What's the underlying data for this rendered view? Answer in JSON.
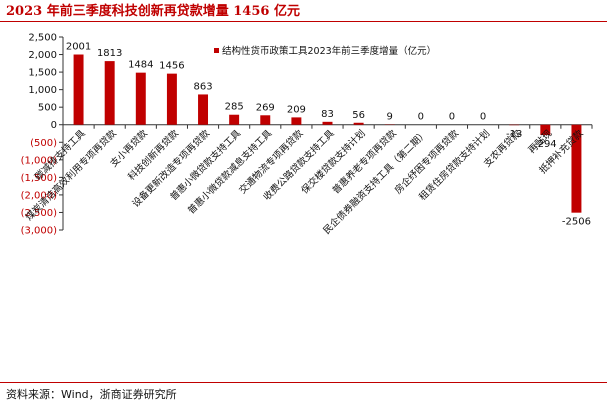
{
  "title": "2023 年前三季度科技创新再贷款增量 1456 亿元",
  "source": "资料来源：Wind，浙商证券研究所",
  "chart_data": {
    "type": "bar",
    "legend": "结构性货币政策工具2023年前三季度增量（亿元）",
    "legend_position": "top-right",
    "categories": [
      "碳减排支持工具",
      "煤炭清洁高效利用专项再贷款",
      "支小再贷款",
      "科技创新再贷款",
      "设备更新改造专项再贷款",
      "普惠小微贷款支持工具",
      "普惠小微贷款减息支持工具",
      "交通物流专项再贷款",
      "收费公路贷款支持工具",
      "保交楼贷款支持计划",
      "普惠养老专项再贷款",
      "民企债券融资支持工具（第二期）",
      "房企纾困专项再贷款",
      "租赁住房贷款支持计划",
      "支农再贷款",
      "再贴现",
      "抵押补充贷款"
    ],
    "values": [
      2001,
      1813,
      1484,
      1456,
      863,
      285,
      269,
      209,
      83,
      56,
      9,
      0,
      0,
      0,
      -13,
      -294,
      -2506
    ],
    "value_labels": [
      "2001",
      "1813",
      "1484",
      "1456",
      "863",
      "285",
      "269",
      "209",
      "83",
      "56",
      "9",
      "0",
      "0",
      "0",
      "-13",
      "-294",
      "-2506"
    ],
    "ylim": [
      -3000,
      2500
    ],
    "yticks": [
      2500,
      2000,
      1500,
      1000,
      500,
      0,
      -500,
      -1000,
      -1500,
      -2000,
      -2500,
      -3000
    ],
    "ytick_labels": [
      "2,500",
      "2,000",
      "1,500",
      "1,000",
      "500",
      "0",
      "(500)",
      "(1,000)",
      "(1,500)",
      "(2,000)",
      "(2,500)",
      "(3,000)"
    ],
    "bar_color": "#c00000",
    "negative_tick_color": "#c00000",
    "grid": false
  }
}
